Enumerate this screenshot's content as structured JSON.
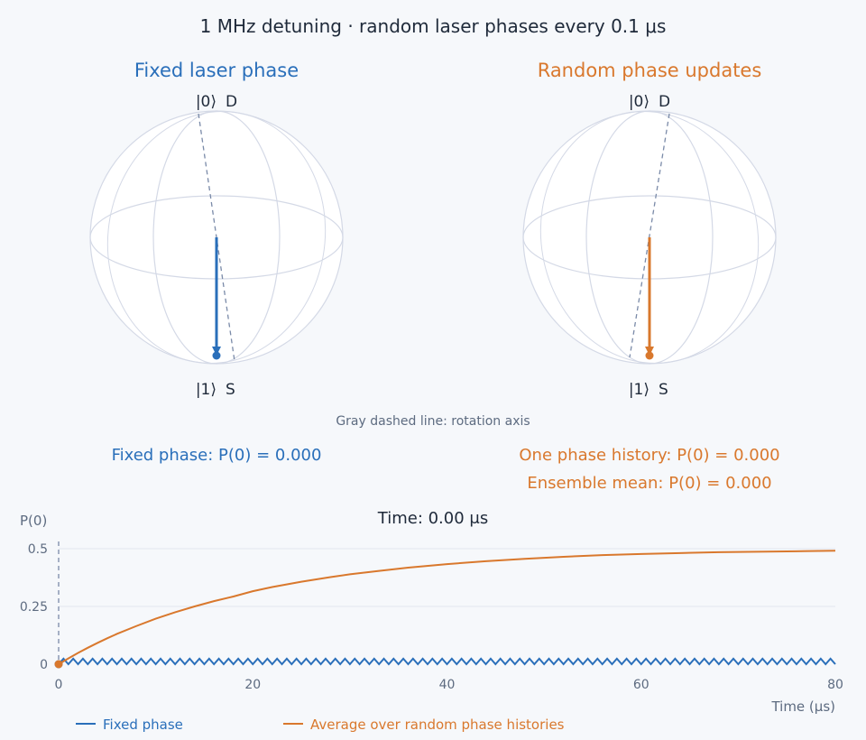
{
  "colors": {
    "blue": "#2a6fba",
    "orange": "#d9782d",
    "axis_dash": "#7a8aa8",
    "sphere_line": "#d4d9e6",
    "grid": "#e1e6ef"
  },
  "header": {
    "title": "1 MHz detuning · random laser phases every 0.1 μs"
  },
  "spheres": [
    {
      "title": "Fixed laser phase",
      "top_ket": "|0⟩",
      "top_label": "D",
      "bottom_ket": "|1⟩",
      "bottom_label": "S",
      "color": "#2a6fba",
      "axis_tilt_deg": -9
    },
    {
      "title": "Random phase updates",
      "top_ket": "|0⟩",
      "top_label": "D",
      "bottom_ket": "|1⟩",
      "bottom_label": "S",
      "color": "#d9782d",
      "axis_tilt_deg": 9
    }
  ],
  "note": "Gray dashed line: rotation axis",
  "readouts": {
    "fixed": "Fixed phase: P(0) = 0.000",
    "one_history": "One phase history: P(0) = 0.000",
    "ensemble": "Ensemble mean: P(0) = 0.000"
  },
  "chart_data": {
    "type": "line",
    "title": "Time: 0.00 μs",
    "xlabel": "Time (μs)",
    "ylabel": "P(0)",
    "xlim": [
      0,
      80
    ],
    "ylim": [
      0,
      0.5
    ],
    "xticks": [
      "0",
      "20",
      "40",
      "60",
      "80"
    ],
    "yticks": [
      "0",
      "0.25",
      "0.5"
    ],
    "current_time": 0,
    "legend_position": "bottom",
    "series": [
      {
        "name": "Fixed phase",
        "color": "#2a6fba",
        "x": [
          0,
          0.5,
          1,
          1.5,
          2,
          2.5,
          3,
          3.5,
          4,
          4.5,
          5,
          5.5,
          6,
          6.5,
          7,
          7.5,
          8,
          8.5,
          9,
          9.5,
          10,
          10.5,
          11,
          11.5,
          12,
          12.5,
          13,
          13.5,
          14,
          14.5,
          15,
          15.5,
          16,
          16.5,
          17,
          17.5,
          18,
          18.5,
          19,
          19.5,
          20,
          20.5,
          21,
          21.5,
          22,
          22.5,
          23,
          23.5,
          24,
          24.5,
          25,
          25.5,
          26,
          26.5,
          27,
          27.5,
          28,
          28.5,
          29,
          29.5,
          30,
          30.5,
          31,
          31.5,
          32,
          32.5,
          33,
          33.5,
          34,
          34.5,
          35,
          35.5,
          36,
          36.5,
          37,
          37.5,
          38,
          38.5,
          39,
          39.5,
          40,
          40.5,
          41,
          41.5,
          42,
          42.5,
          43,
          43.5,
          44,
          44.5,
          45,
          45.5,
          46,
          46.5,
          47,
          47.5,
          48,
          48.5,
          49,
          49.5,
          50,
          50.5,
          51,
          51.5,
          52,
          52.5,
          53,
          53.5,
          54,
          54.5,
          55,
          55.5,
          56,
          56.5,
          57,
          57.5,
          58,
          58.5,
          59,
          59.5,
          60,
          60.5,
          61,
          61.5,
          62,
          62.5,
          63,
          63.5,
          64,
          64.5,
          65,
          65.5,
          66,
          66.5,
          67,
          67.5,
          68,
          68.5,
          69,
          69.5,
          70,
          70.5,
          71,
          71.5,
          72,
          72.5,
          73,
          73.5,
          74,
          74.5,
          75,
          75.5,
          76,
          76.5,
          77,
          77.5,
          78,
          78.5,
          79,
          79.5,
          80
        ],
        "y": [
          0,
          0.024,
          0,
          0.024,
          0,
          0.024,
          0,
          0.024,
          0,
          0.024,
          0,
          0.024,
          0,
          0.024,
          0,
          0.024,
          0,
          0.024,
          0,
          0.024,
          0,
          0.024,
          0,
          0.024,
          0,
          0.024,
          0,
          0.024,
          0,
          0.024,
          0,
          0.024,
          0,
          0.024,
          0,
          0.024,
          0,
          0.024,
          0,
          0.024,
          0,
          0.024,
          0,
          0.024,
          0,
          0.024,
          0,
          0.024,
          0,
          0.024,
          0,
          0.024,
          0,
          0.024,
          0,
          0.024,
          0,
          0.024,
          0,
          0.024,
          0,
          0.024,
          0,
          0.024,
          0,
          0.024,
          0,
          0.024,
          0,
          0.024,
          0,
          0.024,
          0,
          0.024,
          0,
          0.024,
          0,
          0.024,
          0,
          0.024,
          0,
          0.024,
          0,
          0.024,
          0,
          0.024,
          0,
          0.024,
          0,
          0.024,
          0,
          0.024,
          0,
          0.024,
          0,
          0.024,
          0,
          0.024,
          0,
          0.024,
          0,
          0.024,
          0,
          0.024,
          0,
          0.024,
          0,
          0.024,
          0,
          0.024,
          0,
          0.024,
          0,
          0.024,
          0,
          0.024,
          0,
          0.024,
          0,
          0.024,
          0,
          0.024,
          0,
          0.024,
          0,
          0.024,
          0,
          0.024,
          0,
          0.024,
          0,
          0.024,
          0,
          0.024,
          0,
          0.024,
          0,
          0.024,
          0,
          0.024,
          0,
          0.024,
          0,
          0.024,
          0,
          0.024,
          0,
          0.024,
          0,
          0.024,
          0,
          0.024,
          0,
          0.024,
          0,
          0.024,
          0,
          0.024,
          0,
          0.024,
          0
        ]
      },
      {
        "name": "Average over random phase histories",
        "color": "#d9782d",
        "x": [
          0,
          1,
          2,
          3,
          4,
          5,
          6,
          8,
          10,
          12,
          14,
          16,
          18,
          20,
          22,
          25,
          28,
          30,
          33,
          36,
          40,
          44,
          48,
          52,
          56,
          60,
          64,
          68,
          72,
          76,
          80
        ],
        "y": [
          0,
          0.025,
          0.049,
          0.071,
          0.092,
          0.112,
          0.131,
          0.165,
          0.197,
          0.225,
          0.25,
          0.273,
          0.293,
          0.316,
          0.334,
          0.357,
          0.377,
          0.389,
          0.404,
          0.418,
          0.433,
          0.446,
          0.456,
          0.465,
          0.472,
          0.477,
          0.481,
          0.485,
          0.487,
          0.489,
          0.491
        ]
      }
    ]
  }
}
